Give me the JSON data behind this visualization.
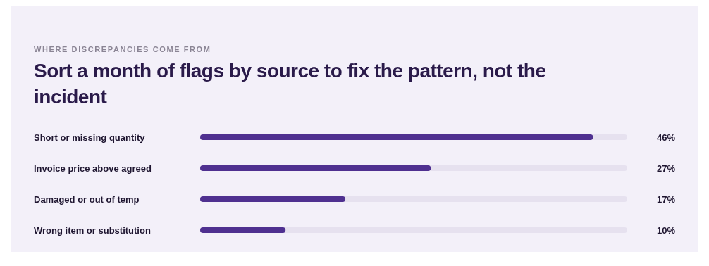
{
  "chart_data": {
    "type": "bar",
    "orientation": "horizontal",
    "subtitle": "WHERE DISCREPANCIES COME FROM",
    "title": "Sort a month of flags by source to fix the pattern, not the incident",
    "categories": [
      "Short or missing quantity",
      "Invoice price above agreed",
      "Damaged or out of temp",
      "Wrong item or substitution"
    ],
    "values": [
      46,
      27,
      17,
      10
    ],
    "value_labels": [
      "46%",
      "27%",
      "17%",
      "10%"
    ],
    "color": "#4f3090",
    "xlim": [
      0,
      50
    ],
    "tick_labels": "y"
  }
}
